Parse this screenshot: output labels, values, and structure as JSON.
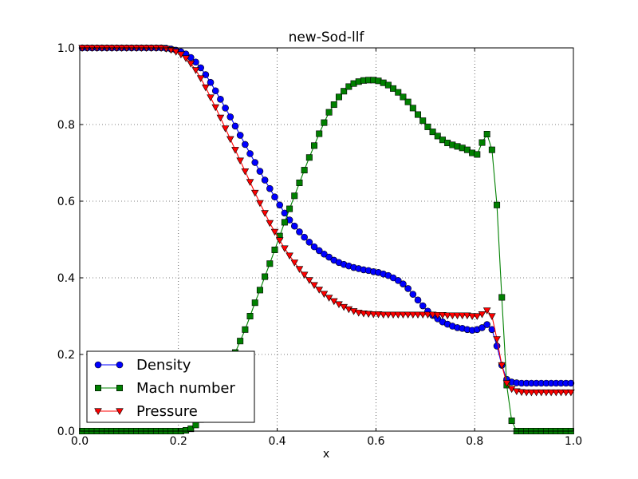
{
  "chart_data": {
    "type": "line",
    "title": "new-Sod-llf",
    "xlabel": "x",
    "ylabel": "",
    "xlim": [
      0.0,
      1.0
    ],
    "ylim": [
      0.0,
      1.0
    ],
    "xticks": [
      "0.0",
      "0.2",
      "0.4",
      "0.6",
      "0.8",
      "1.0"
    ],
    "yticks": [
      "0.0",
      "0.2",
      "0.4",
      "0.6",
      "0.8",
      "1.0"
    ],
    "grid": true,
    "legend_position": "lower-left",
    "x": [
      0.005,
      0.015,
      0.025,
      0.035,
      0.045,
      0.055,
      0.065,
      0.075,
      0.085,
      0.095,
      0.105,
      0.115,
      0.125,
      0.135,
      0.145,
      0.155,
      0.165,
      0.175,
      0.185,
      0.195,
      0.205,
      0.215,
      0.225,
      0.235,
      0.245,
      0.255,
      0.265,
      0.275,
      0.285,
      0.295,
      0.305,
      0.315,
      0.325,
      0.335,
      0.345,
      0.355,
      0.365,
      0.375,
      0.385,
      0.395,
      0.405,
      0.415,
      0.425,
      0.435,
      0.445,
      0.455,
      0.465,
      0.475,
      0.485,
      0.495,
      0.505,
      0.515,
      0.525,
      0.535,
      0.545,
      0.555,
      0.565,
      0.575,
      0.585,
      0.595,
      0.605,
      0.615,
      0.625,
      0.635,
      0.645,
      0.655,
      0.665,
      0.675,
      0.685,
      0.695,
      0.705,
      0.715,
      0.725,
      0.735,
      0.745,
      0.755,
      0.765,
      0.775,
      0.785,
      0.795,
      0.805,
      0.815,
      0.825,
      0.835,
      0.845,
      0.855,
      0.865,
      0.875,
      0.885,
      0.895,
      0.905,
      0.915,
      0.925,
      0.935,
      0.945,
      0.955,
      0.965,
      0.975,
      0.985,
      0.995
    ],
    "series": [
      {
        "name": "Density",
        "color": "#0000ff",
        "marker": "circle",
        "values": [
          1.0,
          1.0,
          1.0,
          1.0,
          1.0,
          1.0,
          1.0,
          1.0,
          1.0,
          1.0,
          1.0,
          1.0,
          1.0,
          1.0,
          1.0,
          1.0,
          1.0,
          0.999,
          0.997,
          0.994,
          0.99,
          0.984,
          0.975,
          0.963,
          0.948,
          0.93,
          0.91,
          0.888,
          0.866,
          0.843,
          0.82,
          0.796,
          0.772,
          0.748,
          0.724,
          0.701,
          0.678,
          0.655,
          0.633,
          0.611,
          0.59,
          0.569,
          0.551,
          0.535,
          0.52,
          0.506,
          0.493,
          0.481,
          0.471,
          0.462,
          0.454,
          0.446,
          0.44,
          0.435,
          0.431,
          0.427,
          0.424,
          0.421,
          0.419,
          0.416,
          0.414,
          0.41,
          0.406,
          0.4,
          0.393,
          0.384,
          0.372,
          0.357,
          0.342,
          0.327,
          0.313,
          0.302,
          0.293,
          0.285,
          0.279,
          0.274,
          0.27,
          0.268,
          0.265,
          0.263,
          0.265,
          0.27,
          0.278,
          0.265,
          0.222,
          0.172,
          0.135,
          0.128,
          0.126,
          0.125,
          0.125,
          0.125,
          0.125,
          0.125,
          0.125,
          0.125,
          0.125,
          0.125,
          0.125,
          0.125
        ]
      },
      {
        "name": "Mach number",
        "color": "#008000",
        "marker": "square",
        "values": [
          0.0,
          0.0,
          0.0,
          0.0,
          0.0,
          0.0,
          0.0,
          0.0,
          0.0,
          0.0,
          0.0,
          0.0,
          0.0,
          0.0,
          0.0,
          0.0,
          0.0,
          0.0,
          0.0,
          0.0,
          0.0,
          0.002,
          0.006,
          0.016,
          0.03,
          0.048,
          0.07,
          0.095,
          0.122,
          0.152,
          0.183,
          0.205,
          0.235,
          0.265,
          0.3,
          0.335,
          0.368,
          0.403,
          0.437,
          0.473,
          0.509,
          0.545,
          0.58,
          0.614,
          0.648,
          0.681,
          0.714,
          0.745,
          0.776,
          0.805,
          0.832,
          0.852,
          0.872,
          0.887,
          0.899,
          0.907,
          0.912,
          0.915,
          0.916,
          0.916,
          0.914,
          0.909,
          0.903,
          0.894,
          0.884,
          0.872,
          0.859,
          0.843,
          0.826,
          0.81,
          0.794,
          0.781,
          0.77,
          0.76,
          0.752,
          0.747,
          0.743,
          0.739,
          0.734,
          0.726,
          0.722,
          0.753,
          0.775,
          0.734,
          0.59,
          0.349,
          0.12,
          0.027,
          0.0,
          0.0,
          0.0,
          0.0,
          0.0,
          0.0,
          0.0,
          0.0,
          0.0,
          0.0,
          0.0,
          0.0
        ]
      },
      {
        "name": "Pressure",
        "color": "#ff0000",
        "marker": "triangle-down",
        "values": [
          1.0,
          1.0,
          1.0,
          1.0,
          1.0,
          1.0,
          1.0,
          1.0,
          1.0,
          1.0,
          1.0,
          1.0,
          1.0,
          1.0,
          1.0,
          1.0,
          1.0,
          0.998,
          0.995,
          0.99,
          0.983,
          0.973,
          0.959,
          0.942,
          0.921,
          0.897,
          0.871,
          0.845,
          0.818,
          0.79,
          0.762,
          0.734,
          0.706,
          0.678,
          0.65,
          0.622,
          0.595,
          0.569,
          0.543,
          0.52,
          0.498,
          0.477,
          0.458,
          0.44,
          0.423,
          0.408,
          0.394,
          0.381,
          0.369,
          0.358,
          0.348,
          0.339,
          0.331,
          0.324,
          0.318,
          0.313,
          0.309,
          0.307,
          0.306,
          0.305,
          0.305,
          0.304,
          0.304,
          0.304,
          0.304,
          0.304,
          0.304,
          0.304,
          0.304,
          0.304,
          0.304,
          0.304,
          0.303,
          0.303,
          0.302,
          0.302,
          0.302,
          0.302,
          0.302,
          0.3,
          0.3,
          0.305,
          0.315,
          0.3,
          0.24,
          0.172,
          0.125,
          0.11,
          0.104,
          0.102,
          0.101,
          0.101,
          0.101,
          0.101,
          0.101,
          0.101,
          0.101,
          0.101,
          0.101,
          0.101
        ]
      }
    ]
  }
}
